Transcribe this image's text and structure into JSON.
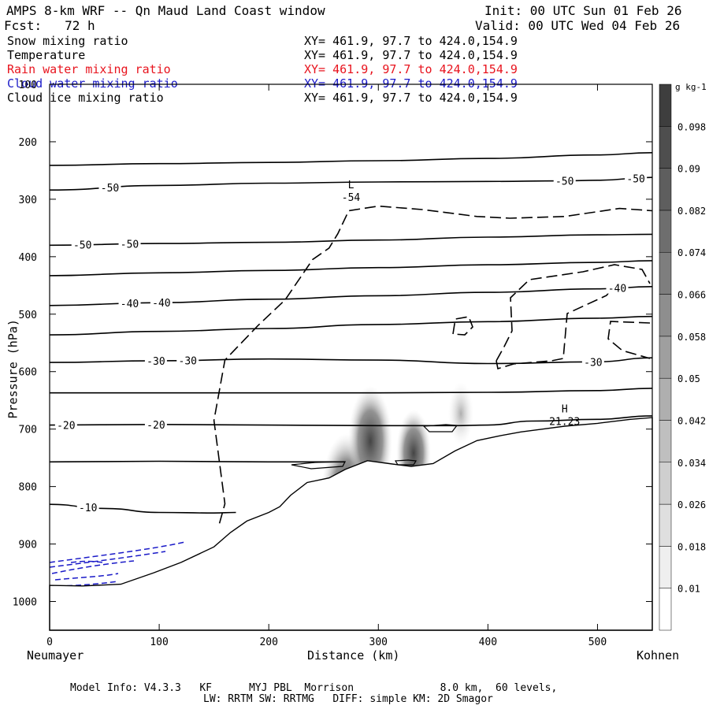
{
  "header": {
    "title": "AMPS 8-km WRF -- Qn Maud Land Coast window",
    "init": "Init: 00 UTC Sun 01 Feb 26",
    "fcst": "Fcst:   72 h",
    "valid": "Valid: 00 UTC Wed 04 Feb 26"
  },
  "legend": [
    {
      "name": "Snow mixing ratio",
      "xy": "XY= 461.9, 97.7 to 424.0,154.9",
      "color": "#000000"
    },
    {
      "name": "Temperature",
      "xy": "XY= 461.9, 97.7 to 424.0,154.9",
      "color": "#000000"
    },
    {
      "name": "Rain water mixing ratio",
      "xy": "XY= 461.9, 97.7 to 424.0,154.9",
      "color": "#e8141e"
    },
    {
      "name": "Cloud water mixing ratio",
      "xy": "XY= 461.9, 97.7 to 424.0,154.9",
      "color": "#1a1ac8"
    },
    {
      "name": "Cloud ice mixing ratio",
      "xy": "XY= 461.9, 97.7 to 424.0,154.9",
      "color": "#000000"
    }
  ],
  "footer": {
    "line1": "Model Info: V4.3.3   KF      MYJ PBL  Morrison              8.0 km,  60 levels,",
    "line2": "LW: RRTM SW: RRTMG   DIFF: simple KM: 2D Smagor"
  },
  "chart_data": {
    "type": "contour",
    "xlabel": "Distance (km)",
    "ylabel": "Pressure (hPa)",
    "xlim": [
      0,
      550
    ],
    "ylim": [
      1050,
      100
    ],
    "x_ticks": [
      0,
      100,
      200,
      300,
      400,
      500
    ],
    "y_ticks": [
      100,
      200,
      300,
      400,
      500,
      600,
      700,
      800,
      900,
      1000
    ],
    "x_end_labels": {
      "left": "Neumayer",
      "right": "Kohnen"
    },
    "temperature_isotherms": [
      {
        "points": [
          [
            0,
            241
          ],
          [
            100,
            238
          ],
          [
            200,
            236
          ],
          [
            300,
            233
          ],
          [
            400,
            229
          ],
          [
            500,
            223
          ],
          [
            550,
            219
          ]
        ]
      },
      {
        "points": [
          [
            0,
            284
          ],
          [
            100,
            276
          ],
          [
            200,
            272
          ],
          [
            300,
            270
          ],
          [
            400,
            269
          ],
          [
            470,
            268
          ],
          [
            500,
            267
          ],
          [
            550,
            262
          ]
        ],
        "labels": [
          {
            "text": "-50",
            "x": 55
          },
          {
            "text": "-50",
            "x": 470
          },
          {
            "text": "-50",
            "x": 535
          }
        ]
      },
      {
        "points": [
          [
            0,
            380
          ],
          [
            100,
            377
          ],
          [
            200,
            375
          ],
          [
            300,
            371
          ],
          [
            400,
            366
          ],
          [
            500,
            362
          ],
          [
            550,
            361
          ]
        ],
        "labels": [
          {
            "text": "-50",
            "x": 30
          },
          {
            "text": "-50",
            "x": 73
          }
        ]
      },
      {
        "points": [
          [
            0,
            433
          ],
          [
            100,
            428
          ],
          [
            200,
            424
          ],
          [
            300,
            419
          ],
          [
            400,
            414
          ],
          [
            500,
            410
          ],
          [
            550,
            407
          ]
        ]
      },
      {
        "points": [
          [
            0,
            485
          ],
          [
            100,
            480
          ],
          [
            200,
            474
          ],
          [
            300,
            468
          ],
          [
            400,
            462
          ],
          [
            500,
            456
          ],
          [
            550,
            452
          ]
        ],
        "labels": [
          {
            "text": "-40",
            "x": 73
          },
          {
            "text": "-40",
            "x": 102
          },
          {
            "text": "-40",
            "x": 518
          }
        ]
      },
      {
        "points": [
          [
            0,
            536
          ],
          [
            100,
            530
          ],
          [
            200,
            525
          ],
          [
            300,
            518
          ],
          [
            400,
            513
          ],
          [
            500,
            507
          ],
          [
            550,
            504
          ]
        ]
      },
      {
        "points": [
          [
            0,
            584
          ],
          [
            100,
            581
          ],
          [
            200,
            578
          ],
          [
            300,
            580
          ],
          [
            400,
            586
          ],
          [
            500,
            583
          ],
          [
            550,
            576
          ]
        ],
        "labels": [
          {
            "text": "-30",
            "x": 97
          },
          {
            "text": "-30",
            "x": 126
          },
          {
            "text": "-30",
            "x": 496
          }
        ]
      },
      {
        "points": [
          [
            0,
            637
          ],
          [
            100,
            637
          ],
          [
            200,
            637
          ],
          [
            300,
            637
          ],
          [
            400,
            636
          ],
          [
            500,
            633
          ],
          [
            550,
            629
          ]
        ]
      },
      {
        "points": [
          [
            0,
            693
          ],
          [
            100,
            692
          ],
          [
            200,
            693
          ],
          [
            300,
            694
          ],
          [
            370,
            694
          ],
          [
            400,
            693
          ],
          [
            440,
            686
          ],
          [
            500,
            683
          ],
          [
            550,
            677
          ]
        ],
        "labels": [
          {
            "text": "-20",
            "x": 15
          },
          {
            "text": "-20",
            "x": 97
          }
        ]
      },
      {
        "points": [
          [
            0,
            757
          ],
          [
            100,
            756
          ],
          [
            200,
            757
          ],
          [
            270,
            757
          ]
        ]
      },
      {
        "points": [
          [
            0,
            831
          ],
          [
            50,
            838
          ],
          [
            100,
            845
          ],
          [
            150,
            846
          ],
          [
            170,
            845
          ]
        ],
        "labels": [
          {
            "text": "-10",
            "x": 35
          }
        ]
      }
    ],
    "tropopause_dashed": [
      [
        155,
        864
      ],
      [
        160,
        830
      ],
      [
        150,
        685
      ],
      [
        160,
        580
      ],
      [
        190,
        520
      ],
      [
        215,
        475
      ],
      [
        240,
        405
      ],
      [
        255,
        385
      ],
      [
        263,
        360
      ],
      [
        273,
        320
      ],
      [
        300,
        312
      ],
      [
        340,
        318
      ],
      [
        390,
        330
      ],
      [
        420,
        333
      ],
      [
        470,
        330
      ],
      [
        520,
        316
      ],
      [
        550,
        320
      ]
    ],
    "terrain": [
      [
        0,
        972
      ],
      [
        30,
        973
      ],
      [
        65,
        970
      ],
      [
        95,
        950
      ],
      [
        120,
        932
      ],
      [
        150,
        905
      ],
      [
        165,
        880
      ],
      [
        180,
        860
      ],
      [
        200,
        845
      ],
      [
        210,
        835
      ],
      [
        220,
        815
      ],
      [
        235,
        793
      ],
      [
        255,
        785
      ],
      [
        270,
        770
      ],
      [
        290,
        755
      ],
      [
        310,
        760
      ],
      [
        330,
        765
      ],
      [
        350,
        760
      ],
      [
        370,
        738
      ],
      [
        390,
        720
      ],
      [
        410,
        712
      ],
      [
        430,
        705
      ],
      [
        450,
        700
      ],
      [
        470,
        695
      ],
      [
        500,
        690
      ],
      [
        530,
        683
      ],
      [
        550,
        680
      ]
    ],
    "extremes": [
      {
        "type": "L",
        "label": "-54",
        "x": 275,
        "p": 300
      },
      {
        "type": "H",
        "label": "21.23",
        "x": 470,
        "p": 690
      }
    ],
    "snow_shading_max_gkg": 0.06,
    "colorbar": {
      "unit": "g kg-1",
      "labels": [
        "0.01",
        "0.018",
        "0.026",
        "0.034",
        "0.042",
        "0.05",
        "0.058",
        "0.066",
        "0.074",
        "0.082",
        "0.09",
        "0.098"
      ]
    }
  }
}
